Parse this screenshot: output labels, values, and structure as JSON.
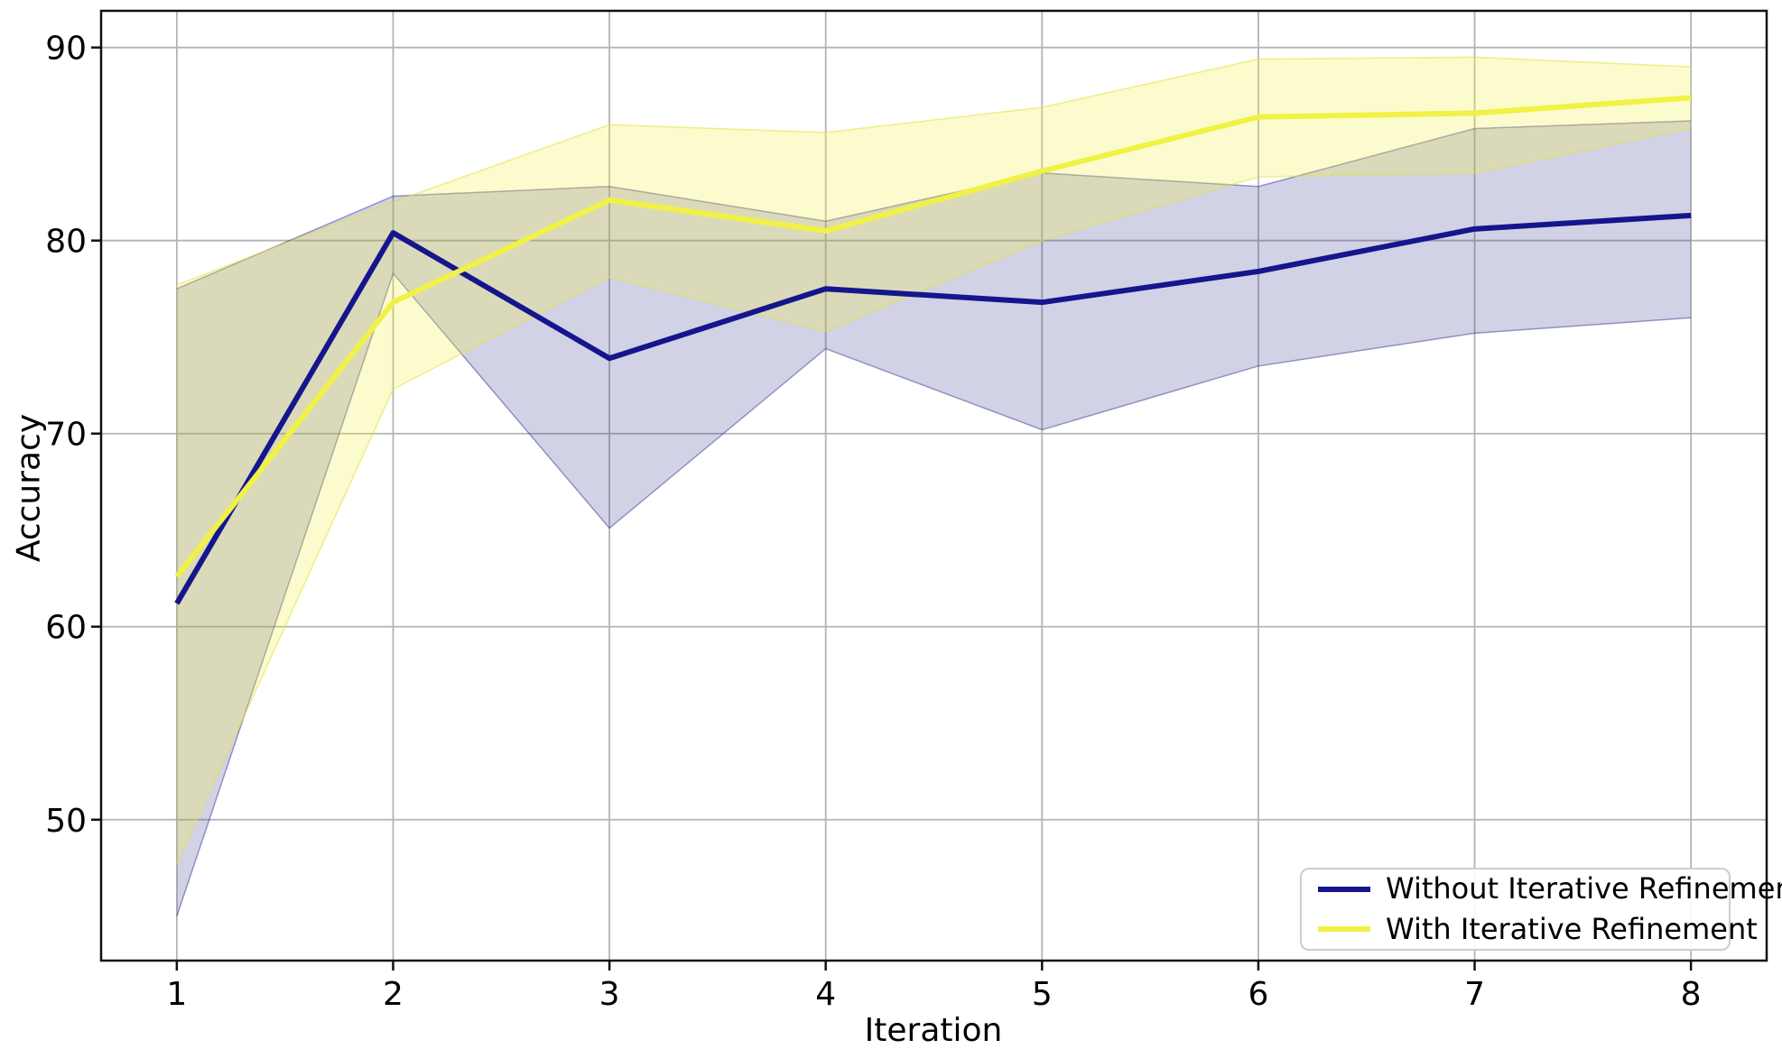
{
  "chart_data": {
    "type": "line",
    "title": "",
    "xlabel": "Iteration",
    "ylabel": "Accuracy",
    "x": [
      1,
      2,
      3,
      4,
      5,
      6,
      7,
      8
    ],
    "xticks": [
      "1",
      "2",
      "3",
      "4",
      "5",
      "6",
      "7",
      "8"
    ],
    "yticks": [
      "50",
      "60",
      "70",
      "80",
      "90"
    ],
    "ytick_values": [
      50,
      60,
      70,
      80,
      90
    ],
    "xlim": [
      0.65,
      8.35
    ],
    "ylim": [
      42.7,
      91.9
    ],
    "grid": true,
    "grid_color": "#b4b4b4",
    "spine_color": "#111111",
    "text_color": "#000000",
    "legend_position": "lower right",
    "series": [
      {
        "name": "Without Iterative Refinement",
        "color": "#15158d",
        "band_fill": "rgba(28,28,130,0.20)",
        "band_edge": "rgba(40,40,140,0.45)",
        "values": [
          61.2,
          80.4,
          73.9,
          77.5,
          76.8,
          78.4,
          80.6,
          81.3
        ],
        "band_lower": [
          45.0,
          78.3,
          65.1,
          74.4,
          70.2,
          73.5,
          75.2,
          76.0
        ],
        "band_upper": [
          77.5,
          82.3,
          82.8,
          81.0,
          83.5,
          82.8,
          85.8,
          86.2
        ]
      },
      {
        "name": "With Iterative Refinement",
        "color": "#f1f146",
        "band_fill": "rgba(242,242,70,0.27)",
        "band_edge": "rgba(225,225,60,0.55)",
        "values": [
          62.6,
          76.8,
          82.1,
          80.5,
          83.6,
          86.4,
          86.6,
          87.4
        ],
        "band_lower": [
          47.7,
          72.3,
          78.1,
          75.3,
          80.0,
          83.3,
          83.5,
          85.8
        ],
        "band_upper": [
          77.7,
          82.0,
          86.0,
          85.6,
          86.9,
          89.4,
          89.5,
          89.0
        ]
      }
    ]
  }
}
